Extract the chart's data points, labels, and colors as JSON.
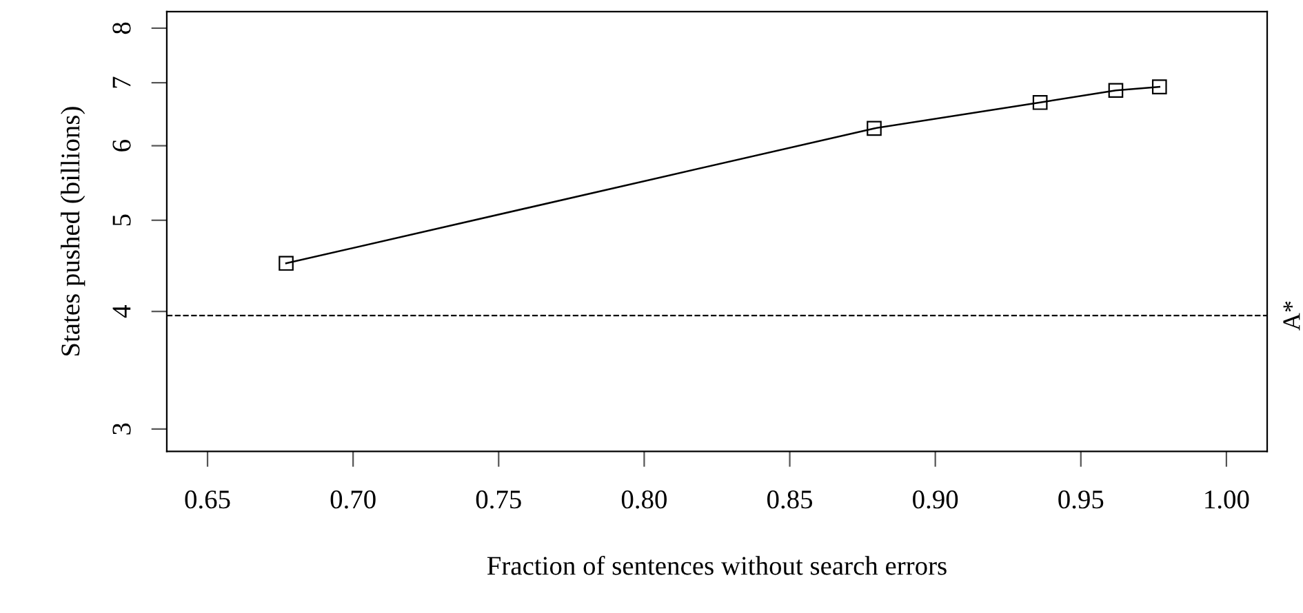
{
  "chart_data": {
    "type": "line",
    "xlabel": "Fraction of sentences without search errors",
    "ylabel": "States pushed (billions)",
    "x": [
      0.677,
      0.879,
      0.936,
      0.962,
      0.977
    ],
    "series": [
      {
        "color": "#000000",
        "values": [
          4.5,
          6.26,
          6.67,
          6.87,
          6.93
        ]
      }
    ],
    "marker": "square",
    "line_style": "solid",
    "log": "y",
    "grid": false,
    "legend": false,
    "xlim": [
      0.636,
      1.014
    ],
    "xticks": [
      {
        "value": 0.65,
        "label": "0.65"
      },
      {
        "value": 0.7,
        "label": "0.70"
      },
      {
        "value": 0.75,
        "label": "0.75"
      },
      {
        "value": 0.8,
        "label": "0.80"
      },
      {
        "value": 0.85,
        "label": "0.85"
      },
      {
        "value": 0.9,
        "label": "0.90"
      },
      {
        "value": 0.95,
        "label": "0.95"
      },
      {
        "value": 1.0,
        "label": "1.00"
      }
    ],
    "ylim": [
      2.84,
      8.33
    ],
    "yticks": [
      3,
      4,
      5,
      6,
      7,
      8
    ],
    "ref_lines": [
      {
        "axis": "y",
        "value": 3.96,
        "label": "A*",
        "color": "#000000",
        "line_style": "dashed"
      }
    ]
  }
}
